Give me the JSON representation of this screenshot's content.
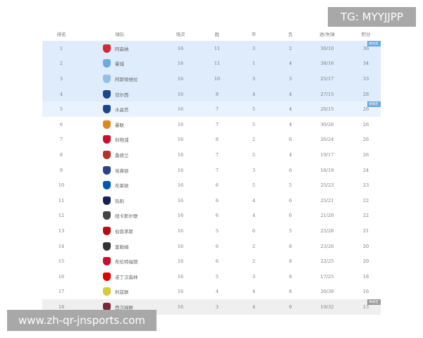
{
  "headers": [
    "排名",
    "球队",
    "场次",
    "胜",
    "平",
    "负",
    "进/失球",
    "积分"
  ],
  "rows": [
    {
      "rank": "1",
      "team": "阿森纳",
      "played": "16",
      "w": "11",
      "d": "3",
      "l": "2",
      "goals": "30/10",
      "pts": "36",
      "crest": "#d8272f",
      "zone": "ucl",
      "tag": "欧冠区"
    },
    {
      "rank": "2",
      "team": "曼城",
      "played": "16",
      "w": "11",
      "d": "1",
      "l": "4",
      "goals": "38/16",
      "pts": "34",
      "crest": "#6cabdd",
      "zone": "ucl"
    },
    {
      "rank": "3",
      "team": "阿斯顿维拉",
      "played": "16",
      "w": "10",
      "d": "3",
      "l": "3",
      "goals": "25/17",
      "pts": "33",
      "crest": "#95bfe5",
      "zone": "ucl"
    },
    {
      "rank": "4",
      "team": "切尔西",
      "played": "16",
      "w": "8",
      "d": "4",
      "l": "4",
      "goals": "27/15",
      "pts": "28",
      "crest": "#1b458f",
      "zone": "ucl"
    },
    {
      "rank": "5",
      "team": "水晶宫",
      "played": "16",
      "w": "7",
      "d": "5",
      "l": "4",
      "goals": "20/15",
      "pts": "26",
      "crest": "#1b458f",
      "zone": "uel",
      "tag": "欧联区"
    },
    {
      "rank": "6",
      "team": "曼联",
      "played": "16",
      "w": "7",
      "d": "5",
      "l": "4",
      "goals": "30/26",
      "pts": "26",
      "crest": "#da8a1a"
    },
    {
      "rank": "7",
      "team": "利物浦",
      "played": "16",
      "w": "8",
      "d": "2",
      "l": "6",
      "goals": "26/24",
      "pts": "26",
      "crest": "#c8102e"
    },
    {
      "rank": "8",
      "team": "桑德兰",
      "played": "16",
      "w": "7",
      "d": "5",
      "l": "4",
      "goals": "19/17",
      "pts": "26",
      "crest": "#b5312a"
    },
    {
      "rank": "9",
      "team": "埃弗顿",
      "played": "16",
      "w": "7",
      "d": "3",
      "l": "6",
      "goals": "18/19",
      "pts": "24",
      "crest": "#274488"
    },
    {
      "rank": "10",
      "team": "布莱顿",
      "played": "16",
      "w": "6",
      "d": "5",
      "l": "5",
      "goals": "25/23",
      "pts": "23",
      "crest": "#0057b8"
    },
    {
      "rank": "11",
      "team": "热刺",
      "played": "16",
      "w": "6",
      "d": "4",
      "l": "6",
      "goals": "25/21",
      "pts": "22",
      "crest": "#132257"
    },
    {
      "rank": "12",
      "team": "纽卡斯尔联",
      "played": "16",
      "w": "6",
      "d": "4",
      "l": "6",
      "goals": "21/20",
      "pts": "22",
      "crest": "#444444"
    },
    {
      "rank": "13",
      "team": "伯恩茅斯",
      "played": "16",
      "w": "5",
      "d": "6",
      "l": "5",
      "goals": "25/28",
      "pts": "21",
      "crest": "#b50e12"
    },
    {
      "rank": "14",
      "team": "富勒姆",
      "played": "16",
      "w": "6",
      "d": "2",
      "l": "8",
      "goals": "23/26",
      "pts": "20",
      "crest": "#333333"
    },
    {
      "rank": "15",
      "team": "布伦特福德",
      "played": "16",
      "w": "6",
      "d": "2",
      "l": "8",
      "goals": "22/25",
      "pts": "20",
      "crest": "#c8102e"
    },
    {
      "rank": "16",
      "team": "诺丁汉森林",
      "played": "16",
      "w": "5",
      "d": "3",
      "l": "8",
      "goals": "17/25",
      "pts": "18",
      "crest": "#dd0000"
    },
    {
      "rank": "17",
      "team": "利兹联",
      "played": "16",
      "w": "4",
      "d": "4",
      "l": "8",
      "goals": "20/30",
      "pts": "16",
      "crest": "#d9c83a"
    },
    {
      "rank": "18",
      "team": "西汉姆联",
      "played": "16",
      "w": "3",
      "d": "4",
      "l": "9",
      "goals": "19/32",
      "pts": "13",
      "crest": "#7a263a",
      "zone": "rel",
      "tag": "降级区"
    }
  ],
  "watermark_top": "TG: MYYJJPP",
  "watermark_bottom": "www.zh-qr-jnsports.com"
}
